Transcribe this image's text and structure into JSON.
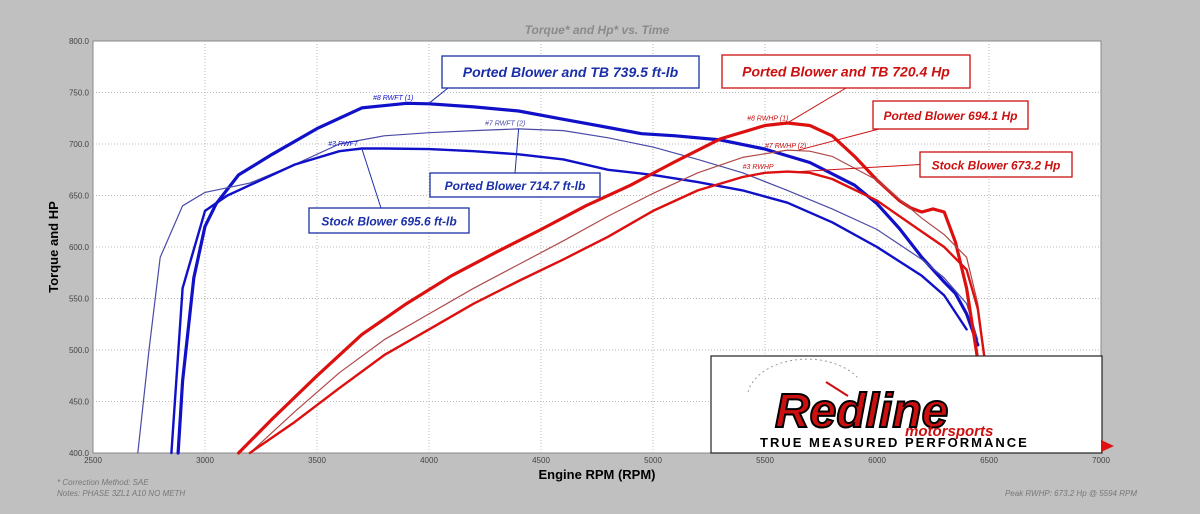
{
  "chart_data": {
    "type": "line",
    "title": "Torque* and Hp* vs. Time",
    "xlabel": "Engine RPM (RPM)",
    "ylabel": "Torque and HP",
    "xlim": [
      2500,
      7000
    ],
    "ylim": [
      400,
      800
    ],
    "x_ticks": [
      "2500",
      "3000",
      "3500",
      "4000",
      "4500",
      "5000",
      "5500",
      "6000",
      "6500",
      "7000"
    ],
    "y_ticks": [
      "400.0",
      "450.0",
      "500.0",
      "550.0",
      "600.0",
      "650.0",
      "700.0",
      "750.0",
      "800.0"
    ],
    "grid": true,
    "series": [
      {
        "name": "#8 RWFT (1)",
        "kind": "torque",
        "color": "#1010c8",
        "width": 3.2,
        "x": [
          2880,
          2900,
          2950,
          3000,
          3050,
          3150,
          3300,
          3500,
          3700,
          3900,
          4000,
          4200,
          4400,
          4600,
          4800,
          4950,
          5100,
          5300,
          5500,
          5700,
          5900,
          6000,
          6100,
          6200,
          6300,
          6350,
          6400,
          6450
        ],
        "y": [
          400,
          470,
          570,
          620,
          642,
          670,
          690,
          715,
          735,
          739.5,
          739,
          736,
          732,
          724,
          716,
          710,
          708,
          704,
          695,
          682,
          660,
          642,
          618,
          590,
          566,
          555,
          535,
          505
        ]
      },
      {
        "name": "#7 RWFT (2)",
        "kind": "torque",
        "color": "#4a4aa8",
        "width": 1.2,
        "x": [
          2700,
          2750,
          2800,
          2900,
          3000,
          3200,
          3400,
          3600,
          3800,
          4000,
          4200,
          4400,
          4600,
          4800,
          5000,
          5200,
          5400,
          5600,
          5800,
          6000,
          6200,
          6300,
          6400,
          6450
        ],
        "y": [
          400,
          500,
          590,
          640,
          653,
          662,
          680,
          700,
          708,
          711,
          713,
          714.7,
          713,
          706,
          697,
          685,
          672,
          655,
          637,
          617,
          588,
          570,
          545,
          510
        ]
      },
      {
        "name": "#3 RWFT",
        "kind": "torque",
        "color": "#1010c8",
        "width": 2.4,
        "x": [
          2850,
          2900,
          3000,
          3100,
          3200,
          3400,
          3600,
          3700,
          3800,
          4000,
          4200,
          4400,
          4600,
          4800,
          5000,
          5200,
          5400,
          5600,
          5800,
          6000,
          6200,
          6300,
          6400
        ],
        "y": [
          400,
          560,
          635,
          650,
          660,
          680,
          693,
          695.6,
          695.6,
          695,
          693,
          690,
          685,
          675,
          670,
          663,
          655,
          643,
          624,
          600,
          572,
          553,
          520
        ]
      },
      {
        "name": "#8 RWHP (1)",
        "kind": "hp",
        "color": "#dd1010",
        "width": 3.2,
        "x": [
          3150,
          3300,
          3500,
          3700,
          3900,
          4100,
          4300,
          4500,
          4700,
          4900,
          5100,
          5300,
          5500,
          5600,
          5700,
          5800,
          5900,
          6000,
          6100,
          6150,
          6200,
          6250,
          6300,
          6350,
          6400,
          6450,
          6500
        ],
        "y": [
          400,
          433,
          475,
          515,
          545,
          572,
          595,
          617,
          640,
          660,
          683,
          705,
          718,
          720.4,
          718,
          708,
          688,
          665,
          645,
          638,
          634,
          637,
          634,
          605,
          560,
          490,
          415
        ]
      },
      {
        "name": "#7 RWHP (2)",
        "kind": "hp",
        "color": "#b04848",
        "width": 1.2,
        "x": [
          3200,
          3400,
          3600,
          3800,
          4000,
          4200,
          4400,
          4600,
          4800,
          5000,
          5200,
          5400,
          5600,
          5700,
          5800,
          6000,
          6200,
          6300,
          6400,
          6450,
          6500
        ],
        "y": [
          400,
          440,
          478,
          510,
          535,
          560,
          583,
          606,
          630,
          652,
          672,
          687,
          694.1,
          693,
          688,
          665,
          628,
          612,
          590,
          545,
          460
        ]
      },
      {
        "name": "#3 RWHP",
        "kind": "hp",
        "color": "#dd1010",
        "width": 2.4,
        "x": [
          3200,
          3400,
          3600,
          3800,
          4000,
          4200,
          4400,
          4600,
          4800,
          5000,
          5200,
          5400,
          5500,
          5600,
          5700,
          5800,
          6000,
          6200,
          6300,
          6400,
          6450,
          6500
        ],
        "y": [
          400,
          430,
          463,
          495,
          520,
          545,
          567,
          588,
          610,
          635,
          655,
          668,
          672,
          673.2,
          672,
          666,
          645,
          615,
          600,
          578,
          540,
          460
        ]
      }
    ],
    "curve_labels": [
      {
        "text": "#8 RWFT (1)",
        "x": 3750,
        "y": 741,
        "color": "#1010c8"
      },
      {
        "text": "#7 RWFT (2)",
        "x": 4250,
        "y": 716,
        "color": "#4a4aa8"
      },
      {
        "text": "#3 RWFT",
        "x": 3550,
        "y": 696,
        "color": "#1010c8"
      },
      {
        "text": "#8 RWHP (1)",
        "x": 5420,
        "y": 721,
        "color": "#cc1010"
      },
      {
        "text": "#7 RWHP (2)",
        "x": 5500,
        "y": 694,
        "color": "#cc1010"
      },
      {
        "text": "#3 RWHP",
        "x": 5400,
        "y": 674,
        "color": "#cc1010"
      }
    ],
    "callouts": [
      {
        "text": "Ported Blower and TB 739.5 ft-lb",
        "color": "#1a2fa8",
        "size": "l",
        "target": [
          4000,
          739.5
        ],
        "anchor": "bl"
      },
      {
        "text": "Ported Blower 714.7 ft-lb",
        "color": "#1a2fa8",
        "size": "s",
        "target": [
          4400,
          714.7
        ],
        "anchor": "tc"
      },
      {
        "text": "Stock Blower 695.6 ft-lb",
        "color": "#1a2fa8",
        "size": "s",
        "target": [
          3700,
          695.6
        ],
        "anchor": "tr"
      },
      {
        "text": "Ported Blower and TB 720.4 Hp",
        "color": "#cc1010",
        "size": "l",
        "target": [
          5600,
          720.4
        ],
        "anchor": "bc"
      },
      {
        "text": "Ported Blower 694.1 Hp",
        "color": "#cc1010",
        "size": "s",
        "target": [
          5650,
          694.1
        ],
        "anchor": "bl"
      },
      {
        "text": "Stock Blower 673.2 Hp",
        "color": "#cc1010",
        "size": "s",
        "target": [
          5650,
          673.2
        ],
        "anchor": "l"
      }
    ]
  },
  "footer": {
    "correction": "* Correction Method: SAE",
    "notes": "Notes: PHASE 3ZL1 A10 NO METH",
    "peak": "Peak RWHP: 673.2 Hp @ 5594 RPM"
  },
  "logo": {
    "main": "Redline",
    "sub": "motorsports",
    "tagline": "TRUE MEASURED PERFORMANCE"
  }
}
